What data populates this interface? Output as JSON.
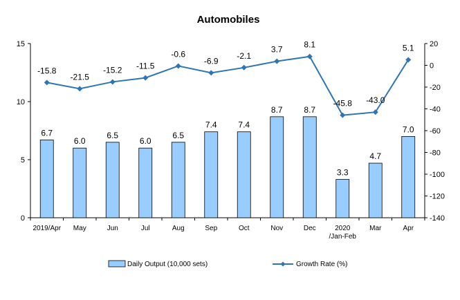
{
  "chart_data": {
    "type": "bar",
    "title": "Automobiles",
    "categories": [
      [
        "2019/Apr"
      ],
      [
        "May"
      ],
      [
        "Jun"
      ],
      [
        "Jul"
      ],
      [
        "Aug"
      ],
      [
        "Sep"
      ],
      [
        "Oct"
      ],
      [
        "Nov"
      ],
      [
        "Dec"
      ],
      [
        "2020",
        "/Jan-Feb"
      ],
      [
        "Mar"
      ],
      [
        "Apr"
      ]
    ],
    "series": [
      {
        "name": "Daily Output (10,000 sets)",
        "kind": "bar",
        "axis": "left",
        "color": "#99ccff",
        "values": [
          6.7,
          6.0,
          6.5,
          6.0,
          6.5,
          7.4,
          7.4,
          8.7,
          8.7,
          3.3,
          4.7,
          7.0
        ]
      },
      {
        "name": "Growth Rate (%)",
        "kind": "line",
        "axis": "right",
        "color": "#2e75b6",
        "values": [
          -15.8,
          -21.5,
          -15.2,
          -11.5,
          -0.6,
          -6.9,
          -2.1,
          3.7,
          8.1,
          -45.8,
          -43.0,
          5.1
        ]
      }
    ],
    "y_left": {
      "min": 0,
      "max": 15,
      "ticks": [
        0,
        5,
        10,
        15
      ]
    },
    "y_right": {
      "min": -140,
      "max": 20,
      "ticks": [
        20,
        0,
        -20,
        -40,
        -60,
        -80,
        -100,
        -120,
        -140
      ]
    },
    "grid": false,
    "legend_position": "bottom"
  }
}
